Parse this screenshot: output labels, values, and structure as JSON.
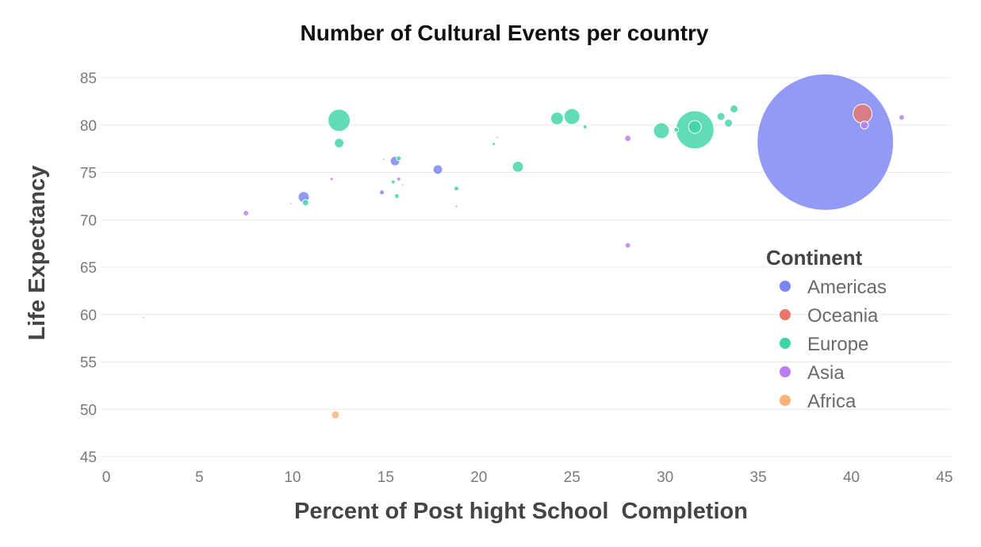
{
  "chart_data": {
    "type": "scatter",
    "title": "Number of Cultural Events per country",
    "xlabel": "Percent of Post hight School  Completion",
    "ylabel": "Life Expectancy",
    "xlim": [
      0,
      45
    ],
    "ylim": [
      45,
      85
    ],
    "x_ticks": [
      0,
      5,
      10,
      15,
      20,
      25,
      30,
      35,
      40,
      45
    ],
    "y_ticks": [
      45,
      50,
      55,
      60,
      65,
      70,
      75,
      80,
      85
    ],
    "grid": true,
    "legend_title": "Continent",
    "legend_position": "right",
    "series": [
      {
        "name": "Americas",
        "color": "#7b84f4",
        "points": [
          {
            "x": 38.6,
            "y": 78.2,
            "size": 86
          },
          {
            "x": 10.6,
            "y": 72.4,
            "size": 7
          },
          {
            "x": 15.5,
            "y": 76.2,
            "size": 6
          },
          {
            "x": 17.8,
            "y": 75.3,
            "size": 6
          },
          {
            "x": 14.8,
            "y": 72.9,
            "size": 3
          }
        ]
      },
      {
        "name": "Oceania",
        "color": "#e8766a",
        "points": [
          {
            "x": 40.6,
            "y": 81.2,
            "size": 12
          }
        ]
      },
      {
        "name": "Europe",
        "color": "#3ed4a6",
        "points": [
          {
            "x": 12.5,
            "y": 80.5,
            "size": 14
          },
          {
            "x": 12.5,
            "y": 78.1,
            "size": 6
          },
          {
            "x": 10.7,
            "y": 71.8,
            "size": 4
          },
          {
            "x": 15.7,
            "y": 76.5,
            "size": 3
          },
          {
            "x": 15.6,
            "y": 72.5,
            "size": 3
          },
          {
            "x": 15.4,
            "y": 74.0,
            "size": 2
          },
          {
            "x": 18.8,
            "y": 73.3,
            "size": 3
          },
          {
            "x": 20.8,
            "y": 78.0,
            "size": 1.5
          },
          {
            "x": 22.1,
            "y": 75.6,
            "size": 7
          },
          {
            "x": 24.2,
            "y": 80.7,
            "size": 8
          },
          {
            "x": 25.0,
            "y": 80.9,
            "size": 10
          },
          {
            "x": 25.7,
            "y": 79.8,
            "size": 2
          },
          {
            "x": 29.8,
            "y": 79.4,
            "size": 10
          },
          {
            "x": 30.6,
            "y": 79.5,
            "size": 3
          },
          {
            "x": 31.6,
            "y": 79.5,
            "size": 24
          },
          {
            "x": 31.6,
            "y": 79.8,
            "size": 8
          },
          {
            "x": 33.0,
            "y": 80.9,
            "size": 5
          },
          {
            "x": 33.4,
            "y": 80.2,
            "size": 5
          },
          {
            "x": 33.7,
            "y": 81.7,
            "size": 5
          }
        ]
      },
      {
        "name": "Asia",
        "color": "#b87ef2",
        "points": [
          {
            "x": 7.5,
            "y": 70.7,
            "size": 3.5
          },
          {
            "x": 12.1,
            "y": 74.3,
            "size": 1.5
          },
          {
            "x": 15.7,
            "y": 74.3,
            "size": 2
          },
          {
            "x": 28.0,
            "y": 78.6,
            "size": 4
          },
          {
            "x": 28.0,
            "y": 67.3,
            "size": 3.5
          },
          {
            "x": 40.7,
            "y": 80.0,
            "size": 5
          },
          {
            "x": 42.7,
            "y": 80.8,
            "size": 3.5
          },
          {
            "x": 2.0,
            "y": 59.7,
            "size": 0.8
          },
          {
            "x": 9.9,
            "y": 71.7,
            "size": 0.8
          },
          {
            "x": 15.9,
            "y": 73.7,
            "size": 0.8
          },
          {
            "x": 18.8,
            "y": 71.4,
            "size": 1
          },
          {
            "x": 21.0,
            "y": 78.7,
            "size": 0.8
          },
          {
            "x": 14.9,
            "y": 76.4,
            "size": 0.8
          }
        ]
      },
      {
        "name": "Africa",
        "color": "#f9b27a",
        "points": [
          {
            "x": 12.3,
            "y": 49.4,
            "size": 5
          }
        ]
      }
    ]
  }
}
